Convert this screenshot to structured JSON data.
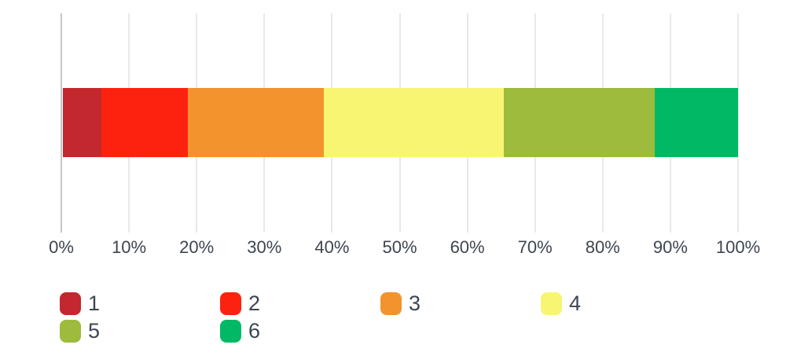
{
  "chart_data": {
    "type": "bar",
    "orientation": "horizontal",
    "stacked": true,
    "value_unit": "percent",
    "title": "",
    "xlabel": "",
    "ylabel": "",
    "xlim": [
      0,
      100
    ],
    "grid": true,
    "legend_position": "bottom",
    "x_ticks": [
      "0%",
      "10%",
      "20%",
      "30%",
      "40%",
      "50%",
      "60%",
      "70%",
      "80%",
      "90%",
      "100%"
    ],
    "series": [
      {
        "name": "1",
        "value": 5.7,
        "color": "#c2282d"
      },
      {
        "name": "2",
        "value": 12.8,
        "color": "#fd2110"
      },
      {
        "name": "3",
        "value": 20.2,
        "color": "#f2932e"
      },
      {
        "name": "4",
        "value": 26.6,
        "color": "#f8f573"
      },
      {
        "name": "5",
        "value": 22.4,
        "color": "#9dbb3c"
      },
      {
        "name": "6",
        "value": 12.3,
        "color": "#00b964"
      }
    ]
  },
  "style": {
    "background": "#ffffff",
    "axis_line_color": "#c6c6c6",
    "grid_line_color": "#e9e9e9",
    "label_color": "#3d4551"
  }
}
